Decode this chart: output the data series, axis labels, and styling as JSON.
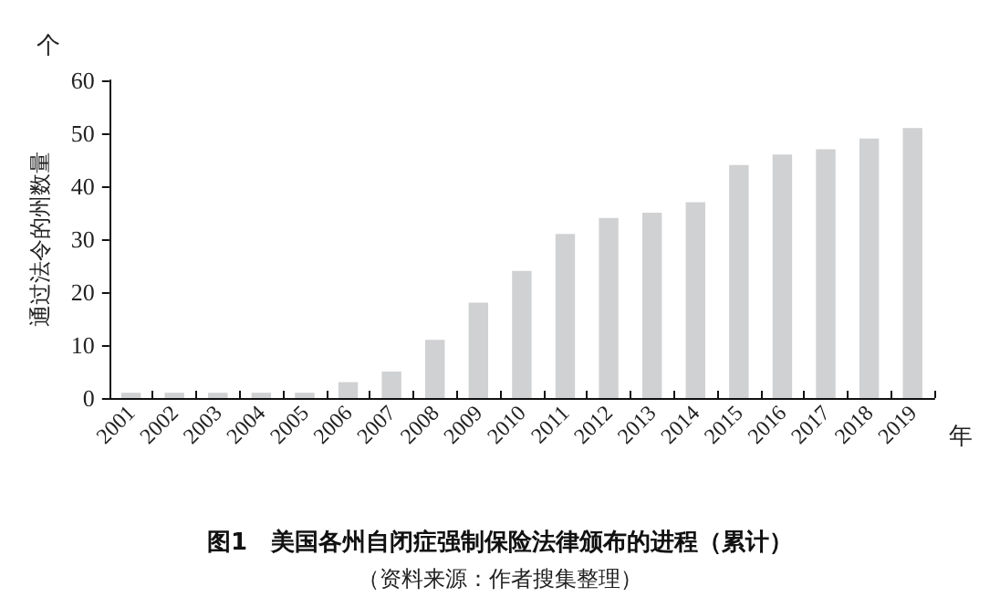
{
  "chart_data": {
    "type": "bar",
    "title": "图1　美国各州自闭症强制保险法律颁布的进程（累计）",
    "categories": [
      "2001",
      "2002",
      "2003",
      "2004",
      "2005",
      "2006",
      "2007",
      "2008",
      "2009",
      "2010",
      "2011",
      "2012",
      "2013",
      "2014",
      "2015",
      "2016",
      "2017",
      "2018",
      "2019"
    ],
    "values": [
      1,
      1,
      1,
      1,
      1,
      3,
      5,
      11,
      18,
      24,
      31,
      34,
      35,
      37,
      44,
      46,
      47,
      49,
      51
    ],
    "color": "#d0d1d3",
    "xlabel": "年",
    "ylabel": "通过法令的州数量",
    "annotations": [
      "个",
      "（资料来源：作者搜集整理）"
    ],
    "ylim": [
      0,
      60
    ],
    "yticks": [
      0,
      10,
      20,
      30,
      40,
      50,
      60
    ],
    "grid": false
  }
}
